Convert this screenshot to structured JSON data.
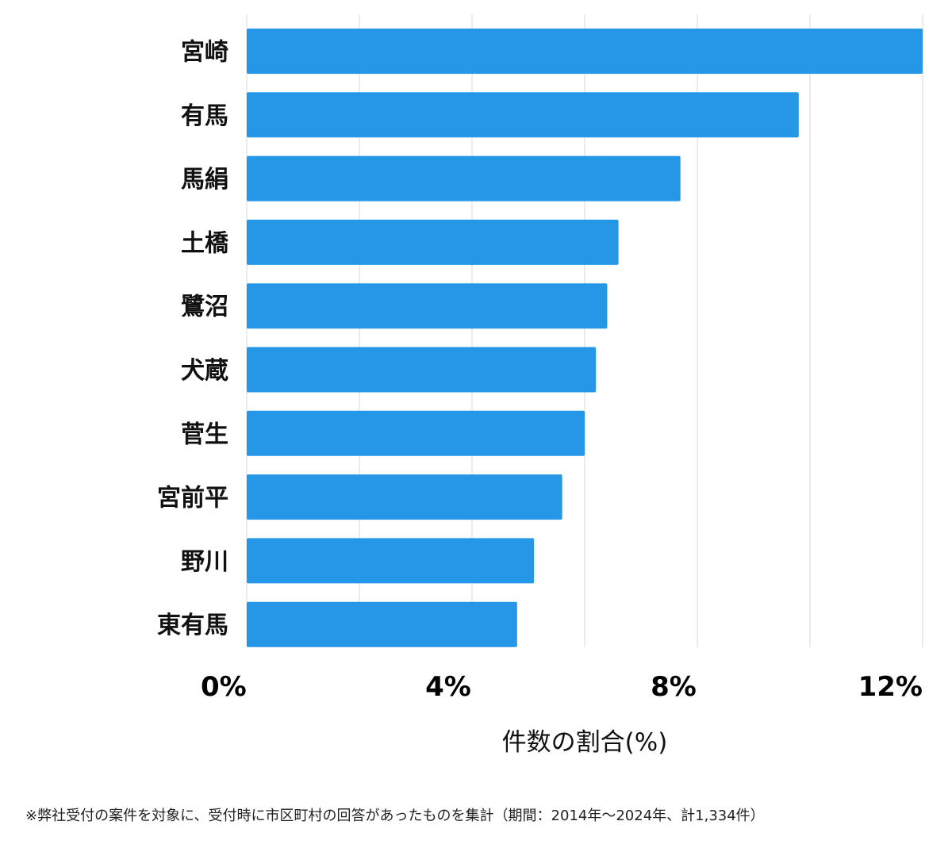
{
  "chart_data": {
    "type": "bar",
    "orientation": "horizontal",
    "categories": [
      "宮崎",
      "有馬",
      "馬絹",
      "土橋",
      "鷺沼",
      "犬蔵",
      "菅生",
      "宮前平",
      "野川",
      "東有馬"
    ],
    "values": [
      12.0,
      9.8,
      7.7,
      6.6,
      6.4,
      6.2,
      6.0,
      5.6,
      5.1,
      4.8
    ],
    "xlim": [
      0,
      12
    ],
    "xticks": [
      0,
      4,
      8,
      12
    ],
    "tick_labels": [
      "0%",
      "4%",
      "8%",
      "12%"
    ],
    "xlabel": "件数の割合(%)",
    "grid": true,
    "bar_color": "#2696e6"
  },
  "footnote": "※弊社受付の案件を対象に、受付時に市区町村の回答があったものを集計（期間：2014年～2024年、計1,334件）"
}
